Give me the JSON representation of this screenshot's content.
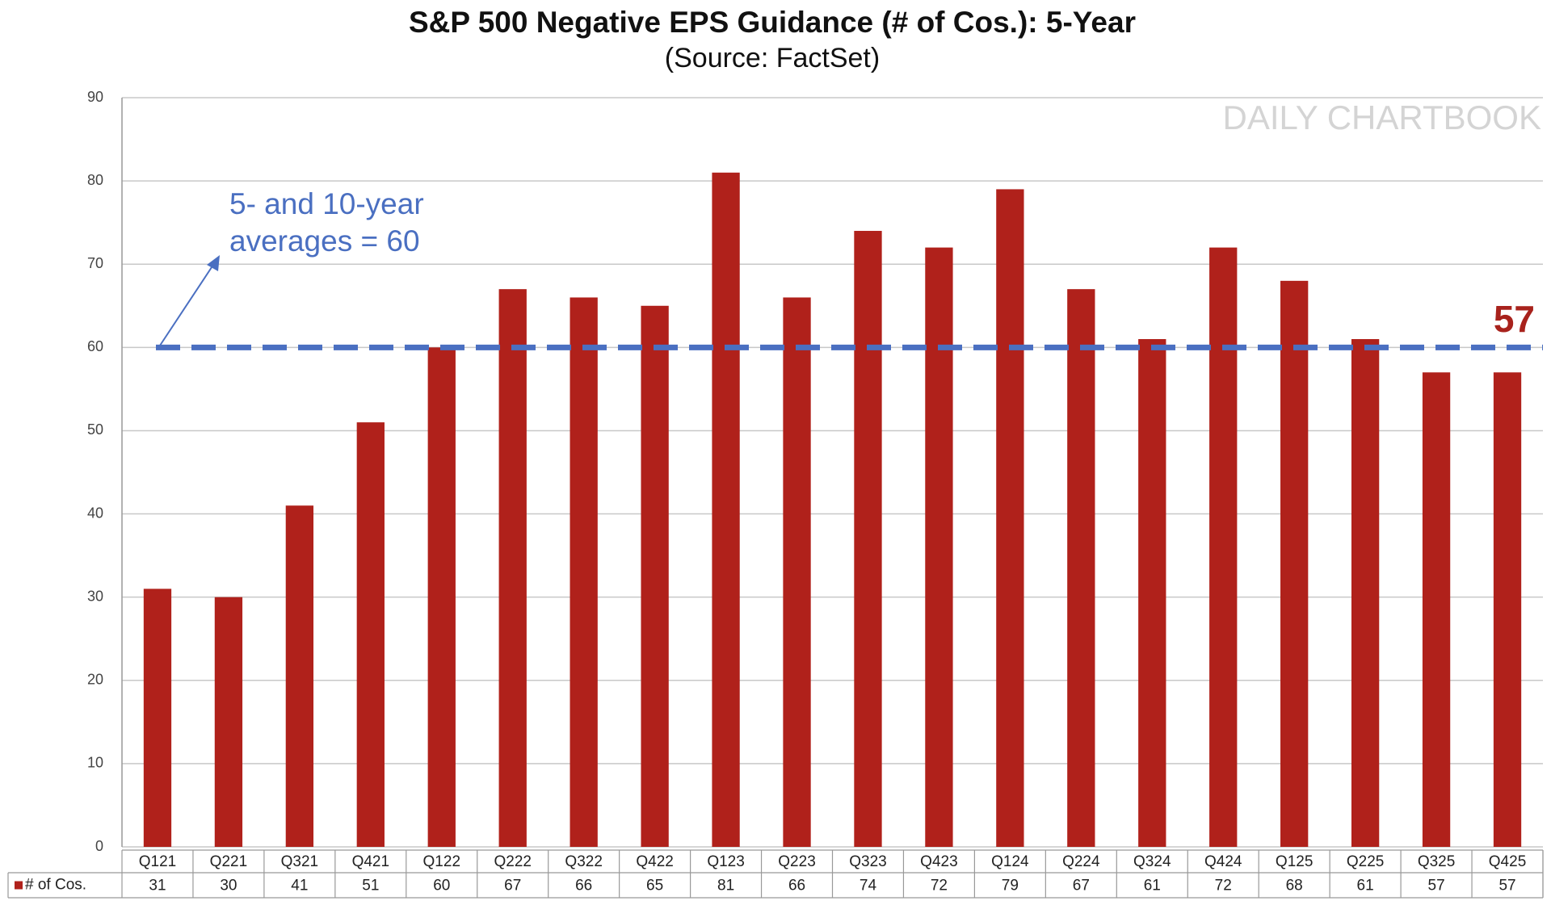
{
  "chart_data": {
    "type": "bar",
    "title": "S&P 500 Negative EPS Guidance (# of Cos.): 5-Year",
    "subtitle": "(Source: FactSet)",
    "watermark": "DAILY CHARTBOOK",
    "categories": [
      "Q121",
      "Q221",
      "Q321",
      "Q421",
      "Q122",
      "Q222",
      "Q322",
      "Q422",
      "Q123",
      "Q223",
      "Q323",
      "Q423",
      "Q124",
      "Q224",
      "Q324",
      "Q424",
      "Q125",
      "Q225",
      "Q325",
      "Q425"
    ],
    "series": [
      {
        "name": "# of Cos.",
        "color": "#b0211b",
        "values": [
          31,
          30,
          41,
          51,
          60,
          67,
          66,
          65,
          81,
          66,
          74,
          72,
          79,
          67,
          61,
          72,
          68,
          61,
          57,
          57
        ]
      }
    ],
    "ylim": [
      0,
      90
    ],
    "yticks": [
      0,
      10,
      20,
      30,
      40,
      50,
      60,
      70,
      80,
      90
    ],
    "grid": true,
    "reference_line": {
      "value": 60,
      "color": "#4a6fc1"
    },
    "annotation": [
      "5- and 10-year",
      "averages = 60"
    ],
    "annotation_color": "#4a6fc1",
    "end_label_color": "#a8221c"
  }
}
